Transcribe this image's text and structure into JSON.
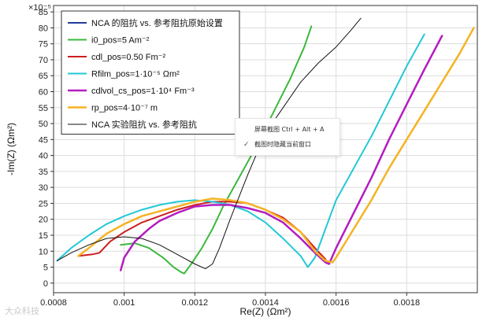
{
  "chart_data": {
    "type": "line",
    "xlabel": "Re(Z) (Ωm²)",
    "ylabel": "-Im(Z) (Ωm²)",
    "y_multiplier": "×10⁻⁵",
    "xlim": [
      0.0008,
      0.002
    ],
    "ylim": [
      -3,
      87
    ],
    "x_ticks": [
      "0.0008",
      "0.001",
      "0.0012",
      "0.0014",
      "0.0016",
      "0.0018"
    ],
    "y_ticks": [
      "0",
      "5",
      "10",
      "15",
      "20",
      "25",
      "30",
      "35",
      "40",
      "45",
      "50",
      "55",
      "60",
      "65",
      "70",
      "75",
      "80",
      "85"
    ],
    "grid": true,
    "legend_position": "top-left",
    "series": [
      {
        "name": "NCA 的阻抗 vs. 参考阻抗原始设置",
        "color": "#1f3d99",
        "width": 2,
        "x": [],
        "y": []
      },
      {
        "name": "i0_pos=5 Am⁻²",
        "color": "#3cb83c",
        "width": 2,
        "x": [
          0.00099,
          0.00103,
          0.00107,
          0.00111,
          0.00114,
          0.00116,
          0.00117,
          0.00119,
          0.00122,
          0.00125,
          0.00128,
          0.00132,
          0.00137,
          0.00142,
          0.00147,
          0.00151,
          0.00153
        ],
        "y": [
          12,
          12.5,
          11,
          8,
          5,
          3.5,
          3,
          6,
          11,
          17,
          24,
          32,
          42,
          53,
          64,
          74,
          80.5
        ]
      },
      {
        "name": "cdl_pos=0.50 Fm⁻²",
        "color": "#cc1f1f",
        "width": 2,
        "x": [
          0.00087,
          0.00091,
          0.00093,
          0.00096,
          0.001,
          0.00105,
          0.0011,
          0.00115,
          0.0012,
          0.00125,
          0.0013,
          0.00135,
          0.0014,
          0.00145,
          0.0015,
          0.00154,
          0.00157
        ],
        "y": [
          8.5,
          9,
          9.5,
          13,
          16,
          19,
          21,
          23,
          24.5,
          25.5,
          25.5,
          25,
          23,
          20.5,
          16,
          11,
          7.5
        ]
      },
      {
        "name": "Rfilm_pos=1·10⁻⁵ Ωm²",
        "color": "#22c8d6",
        "width": 2,
        "x": [
          0.00081,
          0.00085,
          0.0009,
          0.00095,
          0.001,
          0.00105,
          0.0011,
          0.00115,
          0.0012,
          0.00125,
          0.0013,
          0.00135,
          0.0014,
          0.00145,
          0.0015,
          0.00152,
          0.00154,
          0.00156,
          0.00158,
          0.0016,
          0.00165,
          0.0017,
          0.00175,
          0.0018,
          0.00185
        ],
        "y": [
          7,
          11,
          15,
          18.5,
          21,
          23,
          24.5,
          25.5,
          26,
          25.5,
          24.5,
          22.5,
          19,
          14,
          8.5,
          5,
          8,
          14,
          20,
          26,
          36,
          46,
          57,
          68,
          78
        ]
      },
      {
        "name": "cdlvol_cs_pos=1·10⁴ Fm⁻³",
        "color": "#b41cc0",
        "width": 2.5,
        "x": [
          0.00099,
          0.001,
          0.00103,
          0.00107,
          0.0011,
          0.00115,
          0.0012,
          0.00125,
          0.0013,
          0.00135,
          0.0014,
          0.00145,
          0.0015,
          0.00154,
          0.00157,
          0.00158,
          0.0016,
          0.00165,
          0.0017,
          0.00175,
          0.0018,
          0.00185,
          0.0019
        ],
        "y": [
          4,
          8,
          13,
          17,
          19.5,
          22,
          24,
          24.5,
          24.5,
          23.5,
          22,
          19,
          14,
          9.5,
          6.5,
          6,
          11,
          22,
          33,
          45,
          56,
          67,
          77.5
        ]
      },
      {
        "name": "rp_pos=4·10⁻⁷ m",
        "color": "#f5b324",
        "width": 2.5,
        "x": [
          0.00087,
          0.0009,
          0.00095,
          0.001,
          0.00105,
          0.0011,
          0.00115,
          0.0012,
          0.00125,
          0.0013,
          0.00135,
          0.0014,
          0.00145,
          0.0015,
          0.00154,
          0.00157,
          0.00159,
          0.0016,
          0.00165,
          0.0017,
          0.00175,
          0.0018,
          0.00185,
          0.0019,
          0.00195,
          0.00199
        ],
        "y": [
          8.5,
          11,
          15.5,
          18.5,
          21,
          22.5,
          24,
          25.5,
          26.5,
          26,
          25,
          23,
          20,
          16,
          10,
          7,
          6.5,
          8,
          17,
          26,
          36,
          45,
          54,
          63,
          72,
          80
        ]
      },
      {
        "name": "NCA 实验阻抗 vs. 参考阻抗",
        "color": "#111111",
        "width": 1,
        "x": [
          0.00081,
          0.00085,
          0.0009,
          0.00095,
          0.001,
          0.00105,
          0.0011,
          0.00115,
          0.0012,
          0.00123,
          0.00125,
          0.00127,
          0.0013,
          0.00135,
          0.0014,
          0.00145,
          0.0015,
          0.00155,
          0.0016,
          0.00164,
          0.00167
        ],
        "y": [
          7,
          9.5,
          12,
          14,
          14.5,
          14,
          12,
          9,
          6,
          4.5,
          6,
          11,
          20,
          34,
          47,
          55,
          63,
          69,
          74,
          79,
          83
        ]
      }
    ]
  },
  "context_menu": {
    "items": [
      "屏幕截图 Ctrl + Alt + A",
      "截图时隐藏当前窗口"
    ],
    "checked_index": 1
  },
  "watermark": "大众科技"
}
